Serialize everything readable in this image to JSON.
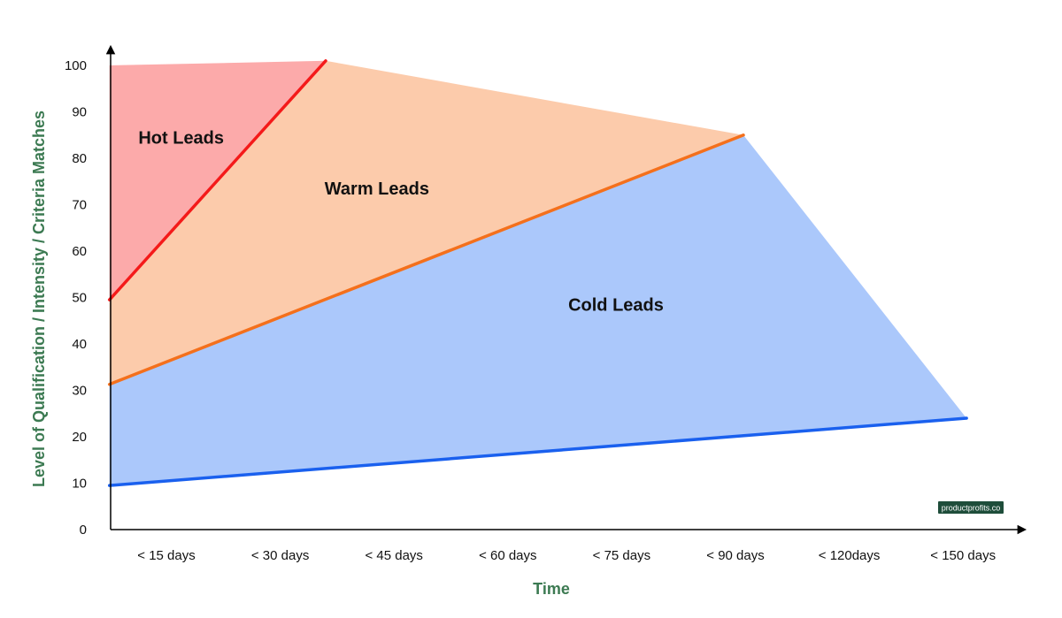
{
  "chart_data": {
    "type": "area",
    "title": "",
    "xlabel": "Time",
    "ylabel": "Level of Qualification / Intensity / Criteria Matches",
    "categories": [
      "< 15 days",
      "< 30 days",
      "< 45 days",
      "< 60 days",
      "< 75 days",
      "< 90 days",
      "< 120days",
      "< 150 days"
    ],
    "y_ticks": [
      0,
      10,
      20,
      30,
      40,
      50,
      60,
      70,
      80,
      90,
      100
    ],
    "ylim": [
      0,
      100
    ],
    "grid": false,
    "regions": [
      {
        "name": "Hot Leads",
        "fill": "#fcaaaa",
        "polygon": [
          [
            -0.5,
            100
          ],
          [
            1.4,
            101
          ],
          [
            -0.5,
            49.5
          ]
        ]
      },
      {
        "name": "Warm Leads",
        "fill": "#fccbab",
        "polygon": [
          [
            -0.5,
            49.5
          ],
          [
            1.4,
            101
          ],
          [
            5.07,
            85
          ],
          [
            -0.5,
            31.3
          ]
        ]
      },
      {
        "name": "Cold Leads",
        "fill": "#abc8fb",
        "polygon": [
          [
            -0.5,
            31.3
          ],
          [
            5.07,
            85
          ],
          [
            7.03,
            24
          ],
          [
            -0.5,
            9.5
          ]
        ]
      }
    ],
    "lines": [
      {
        "color": "#f41a1a",
        "points": [
          [
            -0.5,
            49.5
          ],
          [
            1.4,
            101
          ]
        ]
      },
      {
        "color": "#f4701c",
        "points": [
          [
            -0.5,
            31.3
          ],
          [
            5.07,
            85
          ]
        ]
      },
      {
        "color": "#1a60ee",
        "points": [
          [
            -0.5,
            9.5
          ],
          [
            7.03,
            24
          ]
        ]
      }
    ],
    "annotations": [
      {
        "text": "Hot Leads",
        "x": 0.13,
        "y": 84.5
      },
      {
        "text": "Warm Leads",
        "x": 1.85,
        "y": 73.5
      },
      {
        "text": "Cold Leads",
        "x": 3.95,
        "y": 48.5
      }
    ]
  },
  "watermark": "productprofits.co",
  "colors": {
    "axis": "#000000",
    "axis_title": "#3c7a52",
    "watermark_bg": "#1e4d3a"
  }
}
